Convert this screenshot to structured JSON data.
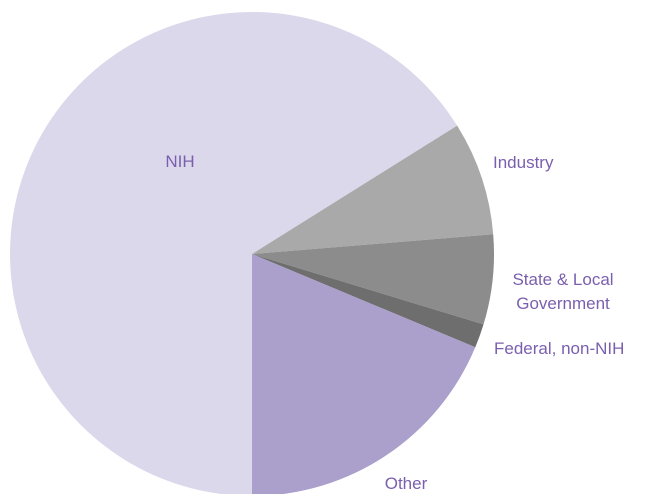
{
  "chart_data": {
    "type": "pie",
    "categories": [
      "NIH",
      "Industry",
      "State & Local Government",
      "Federal, non-NIH",
      "Other"
    ],
    "values": [
      66.1,
      7.6,
      6.0,
      1.6,
      18.7
    ],
    "colors": [
      "#dcd8eb",
      "#a9a9a9",
      "#8c8c8c",
      "#6e6e6e",
      "#ab9fcb"
    ]
  }
}
